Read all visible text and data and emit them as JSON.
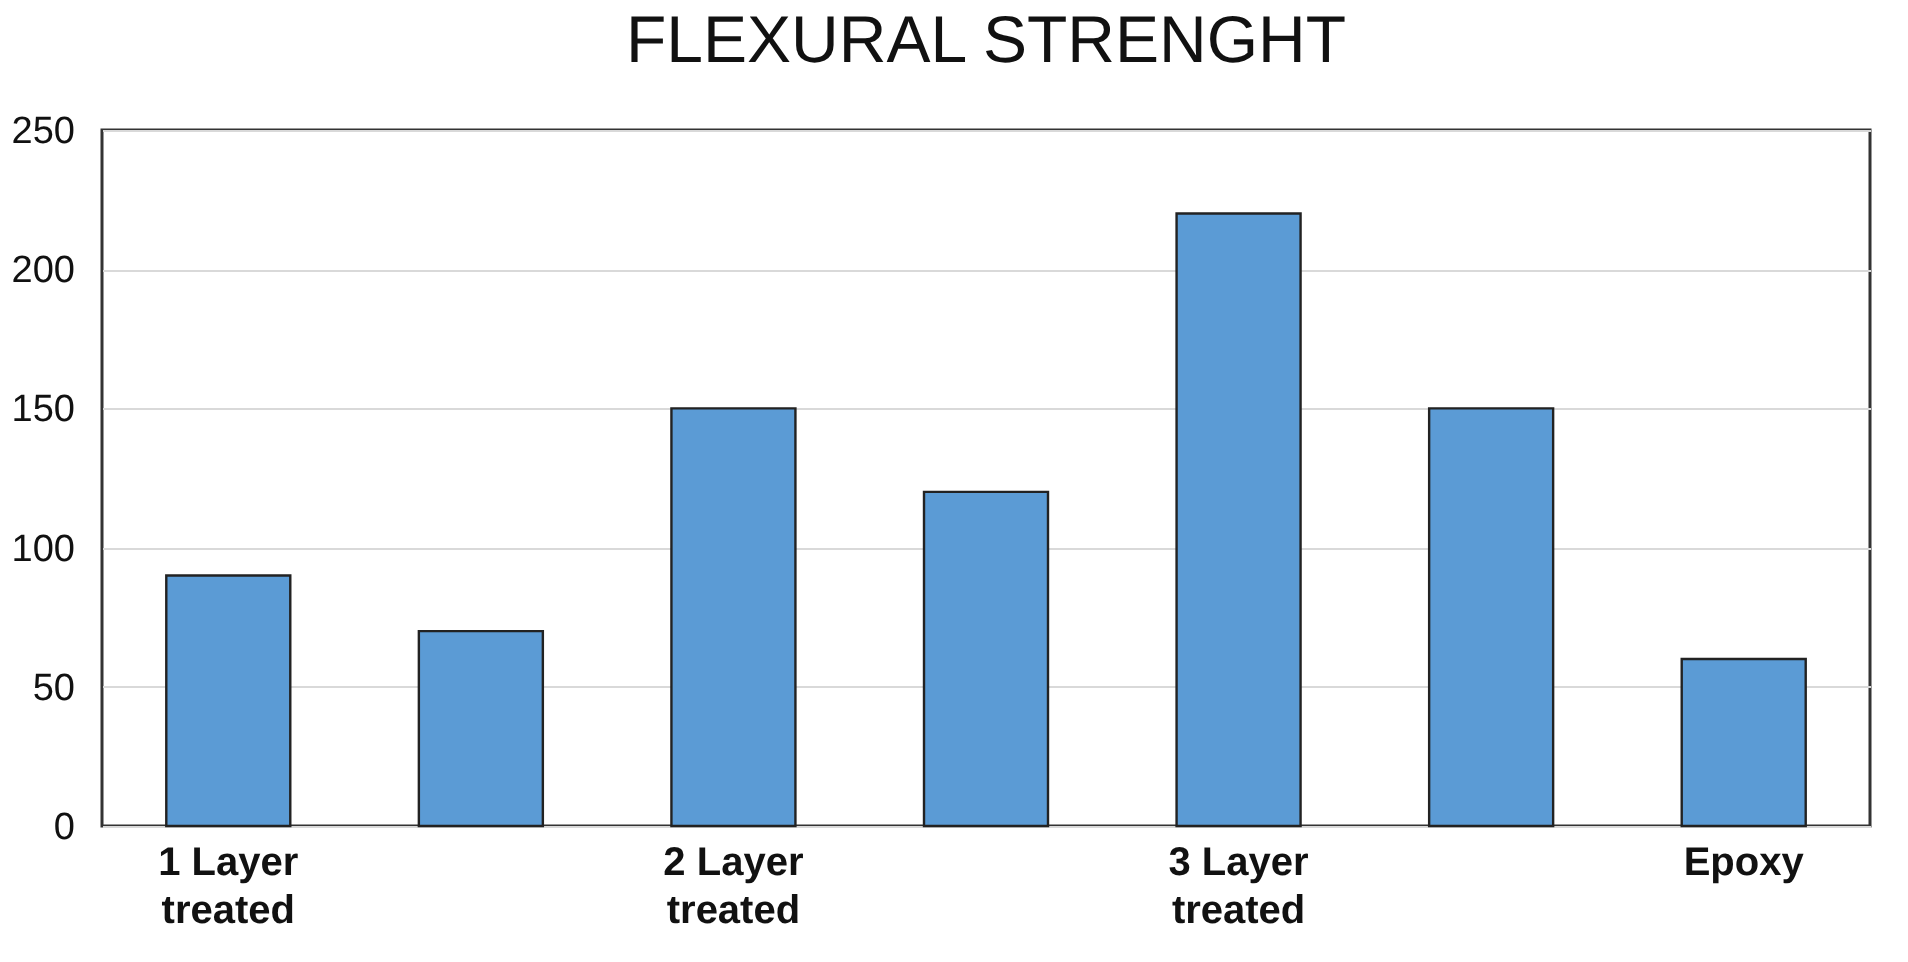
{
  "chart_data": {
    "type": "bar",
    "title": "FLEXURAL STRENGHT",
    "categories": [
      "1 Layer treated",
      null,
      "2 Layer treated",
      null,
      "3 Layer treated",
      null,
      "Epoxy"
    ],
    "values": [
      90,
      70,
      150,
      120,
      220,
      150,
      60
    ],
    "color": "#5b9bd5",
    "ylim": [
      0,
      250
    ],
    "yticks": [
      0,
      50,
      100,
      150,
      200,
      250
    ],
    "grid": "y"
  }
}
